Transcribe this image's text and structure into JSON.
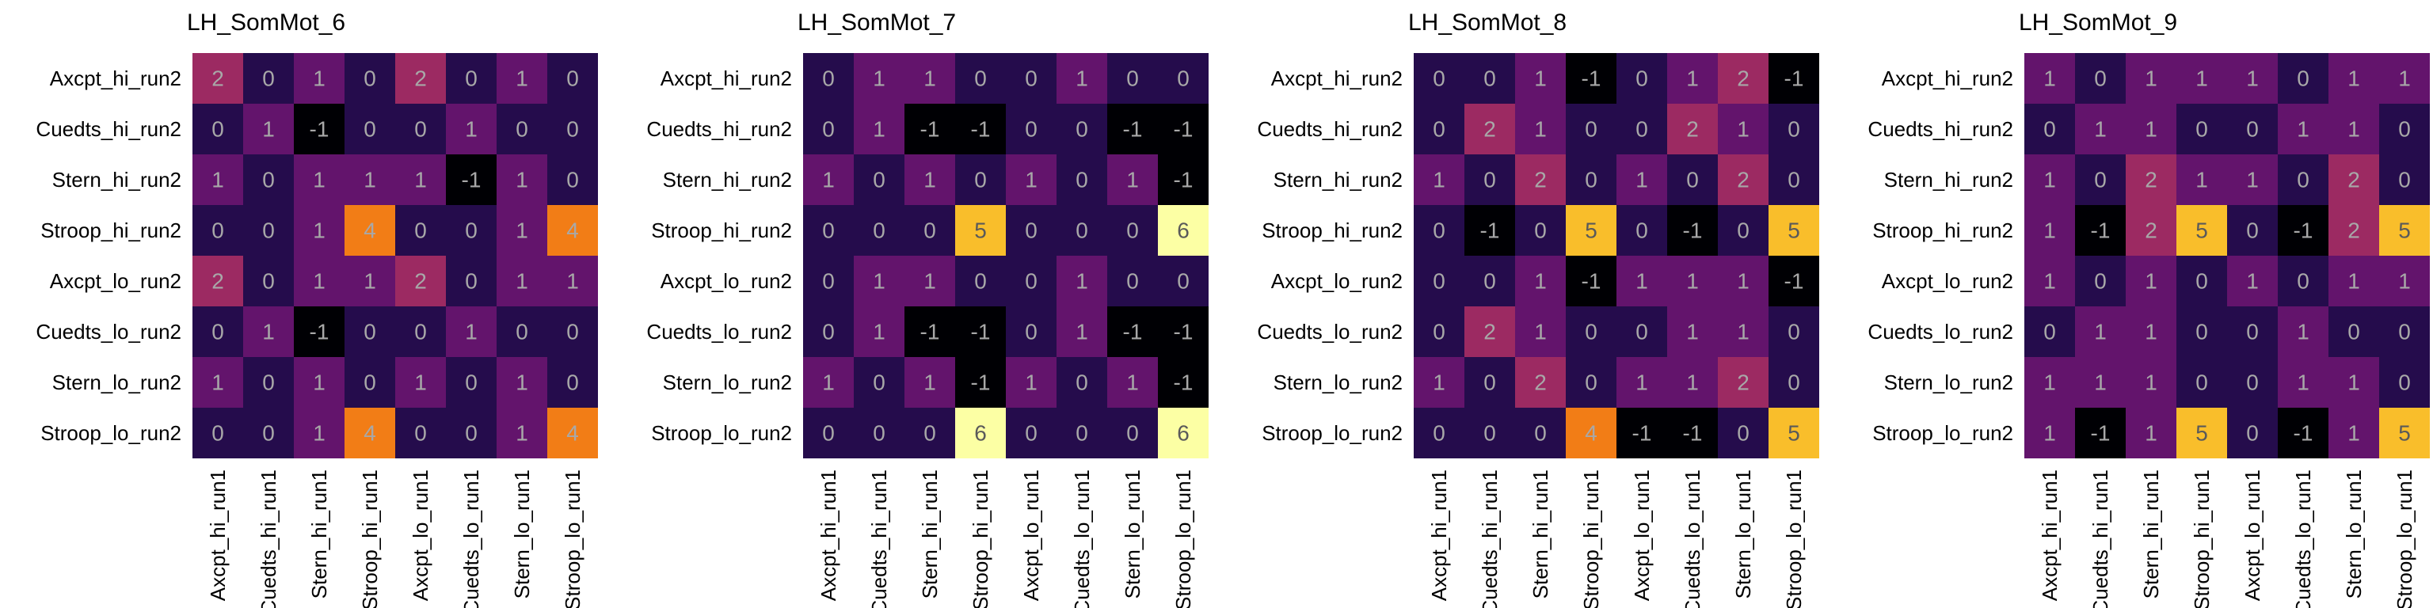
{
  "chart_data": [
    {
      "type": "heatmap",
      "title": "LH_SomMot_6",
      "rows": [
        "Axcpt_hi_run2",
        "Cuedts_hi_run2",
        "Stern_hi_run2",
        "Stroop_hi_run2",
        "Axcpt_lo_run2",
        "Cuedts_lo_run2",
        "Stern_lo_run2",
        "Stroop_lo_run2"
      ],
      "cols": [
        "Axcpt_hi_run1",
        "Cuedts_hi_run1",
        "Stern_hi_run1",
        "Stroop_hi_run1",
        "Axcpt_lo_run1",
        "Cuedts_lo_run1",
        "Stern_lo_run1",
        "Stroop_lo_run1"
      ],
      "values": [
        [
          2,
          0,
          1,
          0,
          2,
          0,
          1,
          0
        ],
        [
          0,
          1,
          -1,
          0,
          0,
          1,
          0,
          0
        ],
        [
          1,
          0,
          1,
          1,
          1,
          -1,
          1,
          0
        ],
        [
          0,
          0,
          1,
          4,
          0,
          0,
          1,
          4
        ],
        [
          2,
          0,
          1,
          1,
          2,
          0,
          1,
          1
        ],
        [
          0,
          1,
          -1,
          0,
          0,
          1,
          0,
          0
        ],
        [
          1,
          0,
          1,
          0,
          1,
          0,
          1,
          0
        ],
        [
          0,
          0,
          1,
          4,
          0,
          0,
          1,
          4
        ]
      ],
      "colormap": "inferno",
      "vmin": -1,
      "vmax": 6
    },
    {
      "type": "heatmap",
      "title": "LH_SomMot_7",
      "rows": [
        "Axcpt_hi_run2",
        "Cuedts_hi_run2",
        "Stern_hi_run2",
        "Stroop_hi_run2",
        "Axcpt_lo_run2",
        "Cuedts_lo_run2",
        "Stern_lo_run2",
        "Stroop_lo_run2"
      ],
      "cols": [
        "Axcpt_hi_run1",
        "Cuedts_hi_run1",
        "Stern_hi_run1",
        "Stroop_hi_run1",
        "Axcpt_lo_run1",
        "Cuedts_lo_run1",
        "Stern_lo_run1",
        "Stroop_lo_run1"
      ],
      "values": [
        [
          0,
          1,
          1,
          0,
          0,
          1,
          0,
          0
        ],
        [
          0,
          1,
          -1,
          -1,
          0,
          0,
          -1,
          -1
        ],
        [
          1,
          0,
          1,
          0,
          1,
          0,
          1,
          -1
        ],
        [
          0,
          0,
          0,
          5,
          0,
          0,
          0,
          6
        ],
        [
          0,
          1,
          1,
          0,
          0,
          1,
          0,
          0
        ],
        [
          0,
          1,
          -1,
          -1,
          0,
          1,
          -1,
          -1
        ],
        [
          1,
          0,
          1,
          -1,
          1,
          0,
          1,
          -1
        ],
        [
          0,
          0,
          0,
          6,
          0,
          0,
          0,
          6
        ]
      ],
      "colormap": "inferno",
      "vmin": -1,
      "vmax": 6
    },
    {
      "type": "heatmap",
      "title": "LH_SomMot_8",
      "rows": [
        "Axcpt_hi_run2",
        "Cuedts_hi_run2",
        "Stern_hi_run2",
        "Stroop_hi_run2",
        "Axcpt_lo_run2",
        "Cuedts_lo_run2",
        "Stern_lo_run2",
        "Stroop_lo_run2"
      ],
      "cols": [
        "Axcpt_hi_run1",
        "Cuedts_hi_run1",
        "Stern_hi_run1",
        "Stroop_hi_run1",
        "Axcpt_lo_run1",
        "Cuedts_lo_run1",
        "Stern_lo_run1",
        "Stroop_lo_run1"
      ],
      "values": [
        [
          0,
          0,
          1,
          -1,
          0,
          1,
          2,
          -1
        ],
        [
          0,
          2,
          1,
          0,
          0,
          2,
          1,
          0
        ],
        [
          1,
          0,
          2,
          0,
          1,
          0,
          2,
          0
        ],
        [
          0,
          -1,
          0,
          5,
          0,
          -1,
          0,
          5
        ],
        [
          0,
          0,
          1,
          -1,
          1,
          1,
          1,
          -1
        ],
        [
          0,
          2,
          1,
          0,
          0,
          1,
          1,
          0
        ],
        [
          1,
          0,
          2,
          0,
          1,
          1,
          2,
          0
        ],
        [
          0,
          0,
          0,
          4,
          -1,
          -1,
          0,
          5
        ]
      ],
      "colormap": "inferno",
      "vmin": -1,
      "vmax": 6
    },
    {
      "type": "heatmap",
      "title": "LH_SomMot_9",
      "rows": [
        "Axcpt_hi_run2",
        "Cuedts_hi_run2",
        "Stern_hi_run2",
        "Stroop_hi_run2",
        "Axcpt_lo_run2",
        "Cuedts_lo_run2",
        "Stern_lo_run2",
        "Stroop_lo_run2"
      ],
      "cols": [
        "Axcpt_hi_run1",
        "Cuedts_hi_run1",
        "Stern_hi_run1",
        "Stroop_hi_run1",
        "Axcpt_lo_run1",
        "Cuedts_lo_run1",
        "Stern_lo_run1",
        "Stroop_lo_run1"
      ],
      "values": [
        [
          1,
          0,
          1,
          1,
          1,
          0,
          1,
          1
        ],
        [
          0,
          1,
          1,
          0,
          0,
          1,
          1,
          0
        ],
        [
          1,
          0,
          2,
          1,
          1,
          0,
          2,
          0
        ],
        [
          1,
          -1,
          2,
          5,
          0,
          -1,
          2,
          5
        ],
        [
          1,
          0,
          1,
          0,
          1,
          0,
          1,
          1
        ],
        [
          0,
          1,
          1,
          0,
          0,
          1,
          0,
          0
        ],
        [
          1,
          1,
          1,
          0,
          0,
          1,
          1,
          0
        ],
        [
          1,
          -1,
          1,
          5,
          0,
          -1,
          1,
          5
        ]
      ],
      "colormap": "inferno",
      "vmin": -1,
      "vmax": 6
    }
  ]
}
